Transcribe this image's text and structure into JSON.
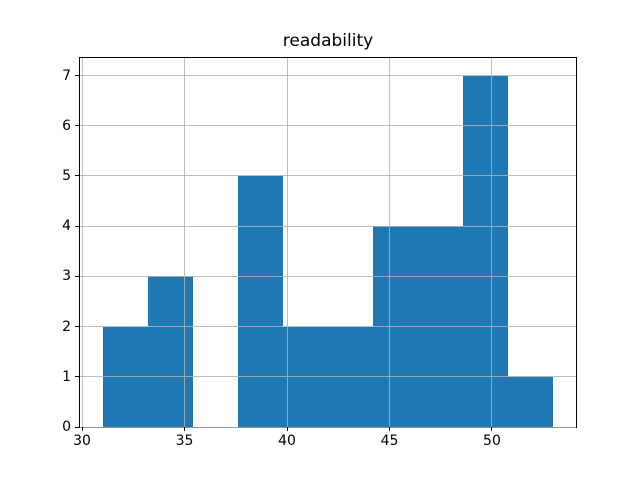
{
  "figure": {
    "background": "#ffffff"
  },
  "chart_data": {
    "type": "bar",
    "subtype": "histogram",
    "title": "readability",
    "xlabel": "",
    "ylabel": "",
    "bin_edges": [
      31.0,
      33.2,
      35.4,
      37.6,
      39.8,
      42.0,
      44.2,
      46.4,
      48.6,
      50.8,
      53.0
    ],
    "counts": [
      2,
      3,
      0,
      5,
      2,
      2,
      4,
      4,
      7,
      1
    ],
    "xlim": [
      29.9,
      54.1
    ],
    "ylim": [
      0,
      7.35
    ],
    "xticks": [
      30,
      35,
      40,
      45,
      50
    ],
    "yticks": [
      0,
      1,
      2,
      3,
      4,
      5,
      6,
      7
    ],
    "grid": true,
    "legend": false,
    "bar_color": "#1f77b4",
    "grid_color": "#b0b0b0",
    "spine_color": "#000000",
    "text_color": "#000000"
  }
}
